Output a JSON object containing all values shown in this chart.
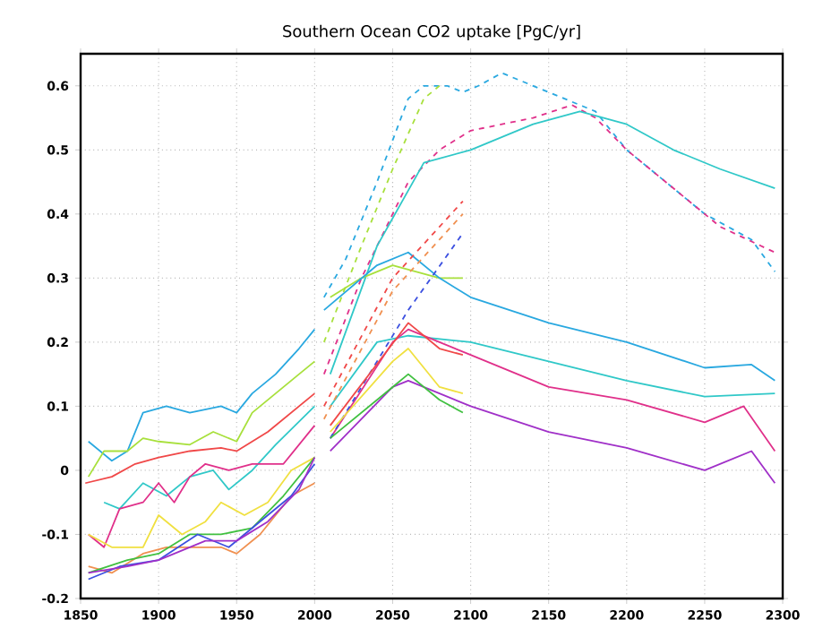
{
  "chart_data": {
    "type": "line",
    "title": "Southern Ocean CO2 uptake [PgC/yr]",
    "xlim": [
      1850,
      2300
    ],
    "ylim": [
      -0.2,
      0.65
    ],
    "xticks": [
      1850,
      1900,
      1950,
      2000,
      2050,
      2100,
      2150,
      2200,
      2250,
      2300
    ],
    "yticks": [
      -0.2,
      -0.1,
      0,
      0.1,
      0.2,
      0.3,
      0.4,
      0.5,
      0.6
    ],
    "grid": true,
    "line_style": "solid",
    "series": [
      {
        "color": "#29a8e0",
        "x": [
          1855,
          1870,
          1880,
          1890,
          1905,
          1920,
          1930,
          1940,
          1950,
          1960,
          1975,
          1990,
          2000
        ],
        "values": [
          0.045,
          0.015,
          0.03,
          0.09,
          0.1,
          0.09,
          0.095,
          0.1,
          0.09,
          0.12,
          0.15,
          0.19,
          0.22
        ]
      },
      {
        "color": "#a8e03c",
        "x": [
          1855,
          1865,
          1880,
          1890,
          1900,
          1920,
          1935,
          1950,
          1960,
          1975,
          1990,
          2000
        ],
        "values": [
          -0.01,
          0.03,
          0.03,
          0.05,
          0.045,
          0.04,
          0.06,
          0.045,
          0.09,
          0.12,
          0.15,
          0.17
        ]
      },
      {
        "color": "#f04848",
        "x": [
          1853,
          1870,
          1885,
          1900,
          1920,
          1940,
          1950,
          1970,
          1990,
          2000
        ],
        "values": [
          -0.02,
          -0.01,
          0.01,
          0.02,
          0.03,
          0.035,
          0.03,
          0.06,
          0.1,
          0.12
        ]
      },
      {
        "color": "#30c8c8",
        "x": [
          1865,
          1875,
          1890,
          1905,
          1920,
          1935,
          1945,
          1960,
          1975,
          2000
        ],
        "values": [
          -0.05,
          -0.06,
          -0.02,
          -0.04,
          -0.01,
          0.0,
          -0.03,
          0.0,
          0.04,
          0.1
        ]
      },
      {
        "color": "#e0308a",
        "x": [
          1855,
          1865,
          1875,
          1890,
          1900,
          1910,
          1920,
          1930,
          1945,
          1960,
          1980,
          2000
        ],
        "values": [
          -0.1,
          -0.12,
          -0.06,
          -0.05,
          -0.02,
          -0.05,
          -0.01,
          0.01,
          0.0,
          0.01,
          0.01,
          0.07
        ]
      },
      {
        "color": "#f0e040",
        "x": [
          1855,
          1870,
          1890,
          1900,
          1915,
          1930,
          1940,
          1955,
          1970,
          1985,
          2000
        ],
        "values": [
          -0.1,
          -0.12,
          -0.12,
          -0.07,
          -0.1,
          -0.08,
          -0.05,
          -0.07,
          -0.05,
          0.0,
          0.02
        ]
      },
      {
        "color": "#f09050",
        "x": [
          1855,
          1870,
          1890,
          1905,
          1920,
          1940,
          1950,
          1965,
          1985,
          2000
        ],
        "values": [
          -0.15,
          -0.16,
          -0.13,
          -0.12,
          -0.12,
          -0.12,
          -0.13,
          -0.1,
          -0.04,
          -0.02
        ]
      },
      {
        "color": "#40c040",
        "x": [
          1855,
          1880,
          1900,
          1920,
          1940,
          1960,
          1980,
          2000
        ],
        "values": [
          -0.16,
          -0.14,
          -0.13,
          -0.1,
          -0.1,
          -0.09,
          -0.04,
          0.02
        ]
      },
      {
        "color": "#3c50e0",
        "x": [
          1855,
          1875,
          1900,
          1925,
          1945,
          1965,
          1985,
          2000
        ],
        "values": [
          -0.17,
          -0.15,
          -0.14,
          -0.1,
          -0.12,
          -0.08,
          -0.04,
          0.01
        ]
      },
      {
        "color": "#a030c8",
        "x": [
          1855,
          1880,
          1900,
          1930,
          1950,
          1970,
          1990,
          2000
        ],
        "values": [
          -0.16,
          -0.15,
          -0.14,
          -0.11,
          -0.11,
          -0.08,
          -0.03,
          0.02
        ]
      },
      {
        "color": "#29a8e0",
        "line_style": "dashed",
        "x": [
          2006,
          2020,
          2040,
          2060,
          2070,
          2085,
          2095,
          2105,
          2120,
          2140,
          2160,
          2180,
          2200,
          2220,
          2250,
          2280,
          2295
        ],
        "values": [
          0.27,
          0.33,
          0.45,
          0.58,
          0.6,
          0.6,
          0.59,
          0.6,
          0.62,
          0.6,
          0.58,
          0.56,
          0.5,
          0.46,
          0.4,
          0.36,
          0.31
        ]
      },
      {
        "color": "#e0308a",
        "line_style": "dashed",
        "x": [
          2006,
          2030,
          2060,
          2080,
          2100,
          2140,
          2165,
          2180,
          2200,
          2230,
          2260,
          2295
        ],
        "values": [
          0.15,
          0.3,
          0.45,
          0.5,
          0.53,
          0.55,
          0.57,
          0.55,
          0.5,
          0.44,
          0.38,
          0.34
        ]
      },
      {
        "color": "#30c8c8",
        "x": [
          2010,
          2040,
          2070,
          2100,
          2140,
          2170,
          2200,
          2230,
          2260,
          2295
        ],
        "values": [
          0.15,
          0.35,
          0.48,
          0.5,
          0.54,
          0.56,
          0.54,
          0.5,
          0.47,
          0.44
        ]
      },
      {
        "color": "#a8e03c",
        "line_style": "dashed",
        "x": [
          2006,
          2030,
          2050,
          2070,
          2080
        ],
        "values": [
          0.2,
          0.35,
          0.47,
          0.58,
          0.6
        ]
      },
      {
        "color": "#a8e03c",
        "x": [
          2010,
          2030,
          2050,
          2080,
          2095
        ],
        "values": [
          0.27,
          0.3,
          0.32,
          0.3,
          0.3
        ]
      },
      {
        "color": "#29a8e0",
        "x": [
          2006,
          2040,
          2060,
          2080,
          2100,
          2150,
          2200,
          2250,
          2280,
          2295
        ],
        "values": [
          0.25,
          0.32,
          0.34,
          0.3,
          0.27,
          0.23,
          0.2,
          0.16,
          0.165,
          0.14
        ]
      },
      {
        "color": "#30c8c8",
        "x": [
          2010,
          2040,
          2060,
          2100,
          2150,
          2200,
          2250,
          2295
        ],
        "values": [
          0.1,
          0.2,
          0.21,
          0.2,
          0.17,
          0.14,
          0.115,
          0.12
        ]
      },
      {
        "color": "#e0308a",
        "x": [
          2010,
          2050,
          2060,
          2100,
          2150,
          2200,
          2250,
          2275,
          2295
        ],
        "values": [
          0.05,
          0.2,
          0.22,
          0.18,
          0.13,
          0.11,
          0.075,
          0.1,
          0.03
        ]
      },
      {
        "color": "#a030c8",
        "x": [
          2010,
          2050,
          2060,
          2100,
          2150,
          2200,
          2250,
          2280,
          2295
        ],
        "values": [
          0.03,
          0.13,
          0.14,
          0.1,
          0.06,
          0.035,
          0.0,
          0.03,
          -0.02
        ]
      },
      {
        "color": "#f04848",
        "line_style": "dashed",
        "x": [
          2006,
          2050,
          2080,
          2095
        ],
        "values": [
          0.1,
          0.3,
          0.38,
          0.42
        ]
      },
      {
        "color": "#f09050",
        "line_style": "dashed",
        "x": [
          2006,
          2050,
          2095
        ],
        "values": [
          0.08,
          0.28,
          0.4
        ]
      },
      {
        "color": "#3c50e0",
        "line_style": "dashed",
        "x": [
          2010,
          2060,
          2095
        ],
        "values": [
          0.05,
          0.25,
          0.37
        ]
      },
      {
        "color": "#40c040",
        "x": [
          2010,
          2050,
          2060,
          2080,
          2095
        ],
        "values": [
          0.05,
          0.13,
          0.15,
          0.11,
          0.09
        ]
      },
      {
        "color": "#f0e040",
        "x": [
          2010,
          2050,
          2060,
          2080,
          2095
        ],
        "values": [
          0.06,
          0.17,
          0.19,
          0.13,
          0.12
        ]
      },
      {
        "color": "#f04848",
        "x": [
          2010,
          2060,
          2080,
          2095
        ],
        "values": [
          0.07,
          0.23,
          0.19,
          0.18
        ]
      }
    ]
  }
}
